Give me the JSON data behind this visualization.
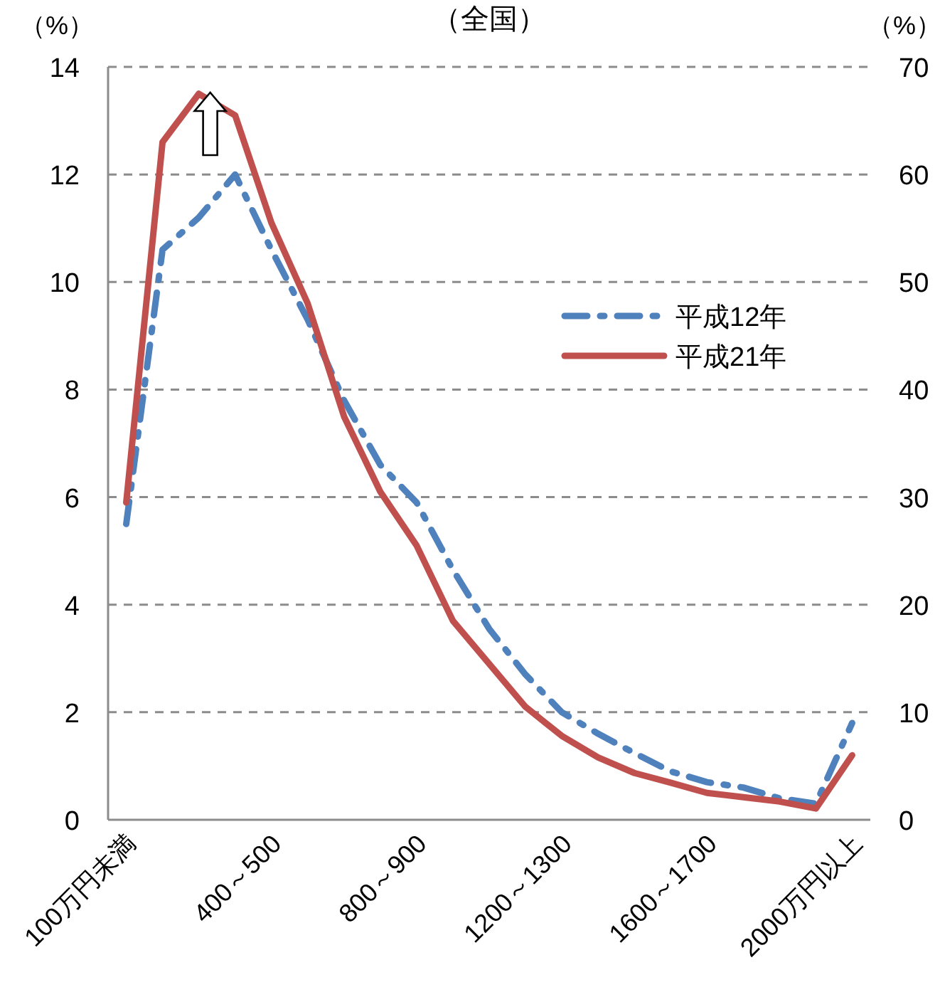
{
  "chart_data": {
    "type": "line",
    "title": "（全国）",
    "ylabel": "（%）",
    "y2label": "（%）",
    "categories": [
      "100万円未満",
      null,
      null,
      null,
      "400～500",
      null,
      null,
      null,
      "800～900",
      null,
      null,
      null,
      "1200～1300",
      null,
      null,
      null,
      "1600～1700",
      null,
      null,
      null,
      "2000万円以上"
    ],
    "series": [
      {
        "name": "平成12年",
        "color": "#4f81bd",
        "line_style": "dashed",
        "values": [
          5.5,
          10.6,
          11.2,
          12.0,
          10.6,
          9.3,
          7.8,
          6.6,
          5.9,
          4.65,
          3.55,
          2.7,
          2.0,
          1.6,
          1.24,
          0.9,
          0.7,
          0.6,
          0.4,
          0.3,
          1.8
        ]
      },
      {
        "name": "平成21年",
        "color": "#c0504d",
        "line_style": "solid",
        "values": [
          5.9,
          12.6,
          13.5,
          13.1,
          11.1,
          9.6,
          7.5,
          6.1,
          5.1,
          3.7,
          2.9,
          2.1,
          1.56,
          1.16,
          0.87,
          0.69,
          0.5,
          0.42,
          0.34,
          0.21,
          1.2
        ]
      }
    ],
    "ylim": [
      0,
      14
    ],
    "yticks": [
      0,
      2,
      4,
      6,
      8,
      10,
      12,
      14
    ],
    "y2lim": [
      0,
      70
    ],
    "y2ticks": [
      0,
      10,
      20,
      30,
      40,
      50,
      60,
      70
    ],
    "grid": "y",
    "legend": "right"
  }
}
